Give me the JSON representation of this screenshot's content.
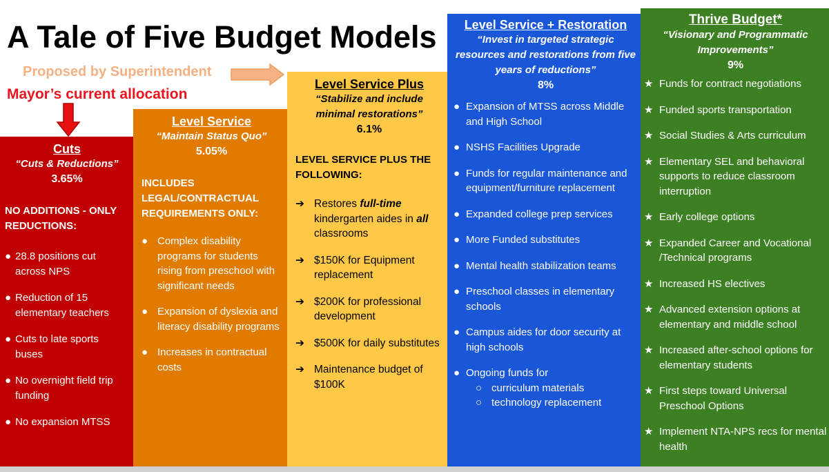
{
  "title": "A Tale of Five Budget Models",
  "proposed_label": "Proposed by Superintendent",
  "mayor_label": "Mayor’s current allocation",
  "colors": {
    "cuts": "#c00000",
    "level_service": "#e07b00",
    "level_service_plus": "#ffc847",
    "restoration": "#1a56d8",
    "thrive": "#3d7f23",
    "proposed_text": "#f4b183",
    "mayor_text": "#e8141e"
  },
  "columns": [
    {
      "name": "Cuts",
      "tagline": "“Cuts & Reductions”",
      "percent": "3.65%",
      "intro": "NO ADDITIONS - ONLY REDUCTIONS:",
      "marker": "●",
      "items": [
        "28.8 positions cut across NPS",
        "Reduction of 15 elementary teachers",
        "Cuts to late sports buses",
        "No overnight field trip funding",
        "No expansion MTSS"
      ]
    },
    {
      "name": "Level Service",
      "tagline": "“Maintain Status Quo”",
      "percent": "5.05%",
      "intro": "INCLUDES LEGAL/CONTRACTUAL REQUIREMENTS ONLY:",
      "marker": "●",
      "items": [
        "Complex disability programs for students rising from preschool with significant needs",
        "Expansion of dyslexia and literacy disability programs",
        "Increases in contractual costs"
      ]
    },
    {
      "name": "Level Service Plus",
      "tagline": "“Stabilize and include minimal restorations”",
      "percent": "6.1%",
      "intro": "LEVEL SERVICE PLUS THE FOLLOWING:",
      "marker": "➔",
      "items": [
        {
          "pre": "Restores ",
          "em1": "full-time",
          "mid": " kindergarten aides in ",
          "em2": "all",
          "post": " classrooms"
        },
        "$150K for Equipment replacement",
        "$200K for professional development",
        "$500K for daily substitutes",
        "Maintenance budget of $100K"
      ]
    },
    {
      "name": "Level Service + Restoration",
      "tagline": "“Invest in targeted strategic resources and  restorations from five years of reductions”",
      "percent": "8%",
      "marker": "●",
      "sub_marker": "○",
      "items": [
        "Expansion of MTSS across Middle and High School",
        "NSHS Facilities Upgrade",
        "Funds for regular maintenance and equipment/furniture replacement",
        "Expanded college prep services",
        "More Funded substitutes",
        "Mental health stabilization teams",
        "Preschool classes in elementary schools",
        "Campus aides for door security at high schools"
      ],
      "last_item": "Ongoing funds for",
      "last_subitems": [
        "curriculum materials",
        "technology replacement"
      ]
    },
    {
      "name": "Thrive Budget*",
      "tagline": "“Visionary and Programmatic Improvements”",
      "percent": "9%",
      "marker": "★",
      "items": [
        "Funds for contract negotiations",
        "Funded sports transportation",
        "Social Studies & Arts curriculum",
        "Elementary SEL and behavioral supports to reduce classroom interruption",
        "Early college options",
        "Expanded Career and Vocational /Technical programs",
        "Increased HS electives",
        "Advanced extension options at elementary and middle school",
        "Increased after-school options for elementary students",
        "First steps toward Universal Preschool Options",
        "Implement NTA-NPS recs for mental health"
      ]
    }
  ]
}
